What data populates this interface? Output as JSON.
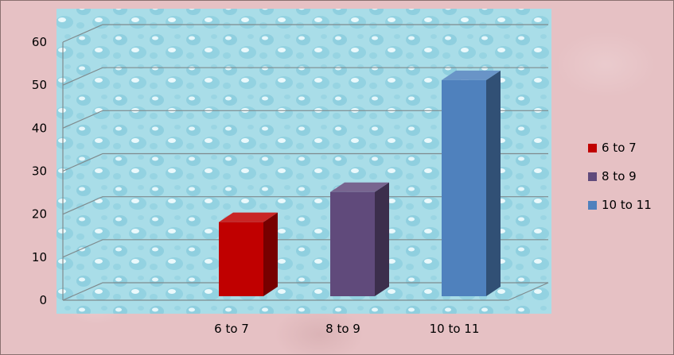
{
  "chart_data": {
    "type": "bar",
    "categories": [
      "6 to 7",
      "8 to 9",
      "10 to 11"
    ],
    "values": [
      20,
      27,
      53
    ],
    "colors": [
      "#c00000",
      "#604a7b",
      "#4f81bd"
    ],
    "ylim": [
      0,
      60
    ],
    "yticks": [
      0,
      10,
      20,
      30,
      40,
      50,
      60
    ],
    "grid": true,
    "legend": {
      "placement": "right",
      "entries": [
        {
          "label": "6 to 7",
          "color": "#c00000"
        },
        {
          "label": "8 to 9",
          "color": "#604a7b"
        },
        {
          "label": "10 to 11",
          "color": "#4f81bd"
        }
      ]
    }
  }
}
